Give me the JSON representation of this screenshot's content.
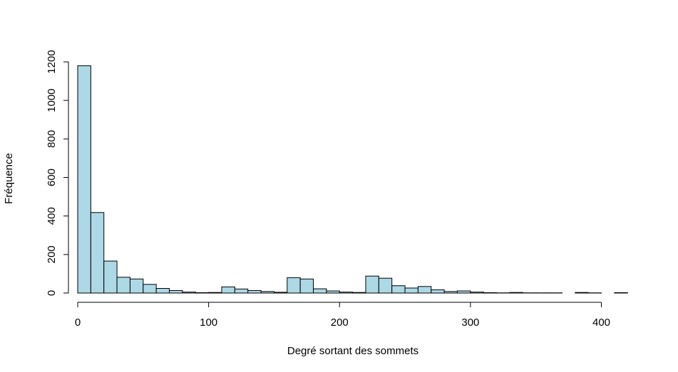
{
  "chart_data": {
    "type": "bar",
    "title": "",
    "xlabel": "Degré sortant des sommets",
    "ylabel": "Fréquence",
    "bin_width": 10,
    "bin_start": 0,
    "values": [
      1180,
      418,
      166,
      82,
      73,
      45,
      24,
      13,
      5,
      2,
      3,
      32,
      21,
      13,
      8,
      4,
      80,
      73,
      22,
      11,
      5,
      3,
      88,
      77,
      38,
      26,
      34,
      17,
      8,
      11,
      5,
      2,
      1,
      3,
      1,
      1,
      1,
      0,
      3,
      1,
      0,
      2
    ],
    "xlim": [
      0,
      420
    ],
    "ylim": [
      0,
      1200
    ],
    "xticks": [
      0,
      100,
      200,
      300,
      400
    ],
    "yticks": [
      0,
      200,
      400,
      600,
      800,
      1000,
      1200
    ],
    "xtick_labels": [
      "0",
      "100",
      "200",
      "300",
      "400"
    ],
    "ytick_labels": [
      "0",
      "200",
      "400",
      "600",
      "800",
      "1000",
      "1200"
    ],
    "bar_color": "#add8e6",
    "edge_color": "#000000",
    "grid": false
  }
}
